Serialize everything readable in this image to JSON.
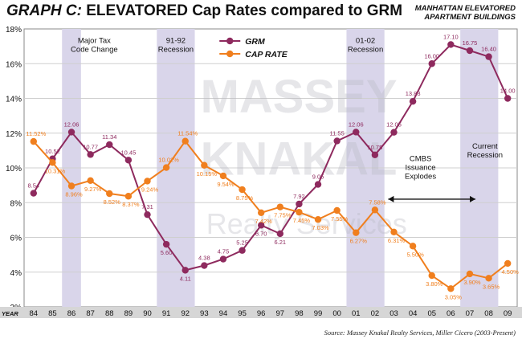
{
  "title": {
    "prefix": "GRAPH C:",
    "main": "ELEVATORED Cap Rates compared to GRM"
  },
  "subtitle": {
    "line1": "MANHATTAN ELEVATORED",
    "line2": "APARTMENT BUILDINGS"
  },
  "source": "Source: Massey Knakal Realty Services, Miller Cicero (2003-Present)",
  "watermark": {
    "line1": "MASSEY",
    "line2": "KNAKAL",
    "line3": "Realty Services"
  },
  "colors": {
    "grm": "#8e2a5e",
    "cap_rate": "#f07f1e",
    "recession_band": "#d9d5ea",
    "background": "#ffffff",
    "grid": "#cfcfcf",
    "watermark": "#b9b9c3"
  },
  "chart_data": {
    "type": "line",
    "title": "GRAPH C: ELEVATORED Cap Rates compared to GRM",
    "x_label_prefix": "YEAR",
    "categories": [
      "84",
      "85",
      "86",
      "87",
      "88",
      "89",
      "90",
      "91",
      "92",
      "93",
      "94",
      "95",
      "96",
      "97",
      "98",
      "99",
      "00",
      "01",
      "02",
      "03",
      "04",
      "05",
      "06",
      "07",
      "08",
      "09"
    ],
    "grid": true,
    "legend_position": "top-center",
    "ylim": [
      2,
      18
    ],
    "y_ticks": [
      "2%",
      "4%",
      "6%",
      "8%",
      "10%",
      "12%",
      "14%",
      "16%",
      "18%"
    ],
    "series": [
      {
        "name": "GRM",
        "values": [
          8.54,
          10.52,
          12.06,
          10.77,
          11.34,
          10.45,
          7.31,
          5.6,
          4.11,
          4.38,
          4.75,
          5.25,
          6.7,
          6.21,
          7.92,
          9.05,
          11.55,
          12.06,
          10.75,
          12.05,
          13.83,
          16.0,
          17.1,
          16.75,
          16.4,
          14.0
        ],
        "labels": [
          "8.54",
          "10.52",
          "12.06",
          "10.77",
          "11.34",
          "10.45",
          "7.31",
          "5.60",
          "4.11",
          "4.38",
          "4.75",
          "5.25",
          "6.70",
          "6.21",
          "7.92",
          "9.05",
          "11.55",
          "12.06",
          "10.75",
          "12.05",
          "13.83",
          "16.00",
          "17.10",
          "16.75",
          "16.40",
          "14.00"
        ]
      },
      {
        "name": "CAP RATE",
        "values": [
          11.52,
          10.31,
          8.96,
          9.27,
          8.52,
          8.37,
          9.24,
          10.02,
          11.54,
          10.15,
          9.54,
          8.75,
          7.42,
          7.75,
          7.45,
          7.03,
          7.55,
          6.27,
          7.58,
          6.31,
          5.5,
          3.8,
          3.05,
          3.9,
          3.65,
          4.5
        ],
        "labels": [
          "11.52%",
          "10.31%",
          "8.96%",
          "9.27%",
          "8.52%",
          "8.37%",
          "9.24%",
          "10.02%",
          "11.54%",
          "10.15%",
          "9.54%",
          "8.75%",
          "7.42%",
          "7.75%",
          "7.45%",
          "7.03%",
          "7.55%",
          "6.27%",
          "7.58%",
          "6.31%",
          "5.50%",
          "3.80%",
          "3.05%",
          "3.90%",
          "3.65%",
          "4.50%"
        ]
      }
    ],
    "shaded_periods": [
      {
        "from": "86",
        "to": "86",
        "label1": "Major Tax",
        "label2": "Code Change"
      },
      {
        "from": "91",
        "to": "92",
        "label1": "91-92",
        "label2": "Recession"
      },
      {
        "from": "01",
        "to": "02",
        "label1": "01-02",
        "label2": "Recession"
      },
      {
        "from": "07",
        "to": "08",
        "label1": "Current",
        "label2": "Recession"
      }
    ],
    "annotations": [
      {
        "text1": "CMBS",
        "text2": "Issuance",
        "text3": "Explodes",
        "arrow_from": "03",
        "arrow_to": "07"
      }
    ]
  }
}
